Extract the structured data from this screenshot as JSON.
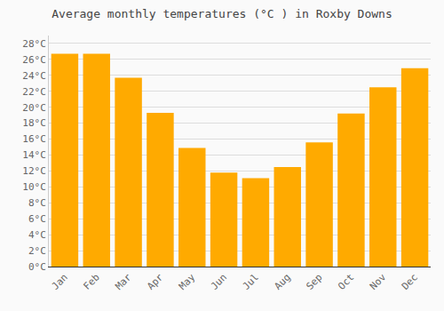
{
  "chart_data": {
    "type": "bar",
    "title": "Average monthly temperatures (°C ) in Roxby Downs",
    "categories": [
      "Jan",
      "Feb",
      "Mar",
      "Apr",
      "May",
      "Jun",
      "Jul",
      "Aug",
      "Sep",
      "Oct",
      "Nov",
      "Dec"
    ],
    "values": [
      26.7,
      26.7,
      23.7,
      19.3,
      14.9,
      11.8,
      11.1,
      12.5,
      15.6,
      19.2,
      22.5,
      24.9
    ],
    "color": "#FFAA00",
    "ylim": [
      0,
      29
    ],
    "yticks": [
      {
        "value": 0,
        "label": "0°C"
      },
      {
        "value": 2,
        "label": "2°C"
      },
      {
        "value": 4,
        "label": "4°C"
      },
      {
        "value": 6,
        "label": "6°C"
      },
      {
        "value": 8,
        "label": "8°C"
      },
      {
        "value": 10,
        "label": "10°C"
      },
      {
        "value": 12,
        "label": "12°C"
      },
      {
        "value": 14,
        "label": "14°C"
      },
      {
        "value": 16,
        "label": "16°C"
      },
      {
        "value": 18,
        "label": "18°C"
      },
      {
        "value": 20,
        "label": "20°C"
      },
      {
        "value": 22,
        "label": "22°C"
      },
      {
        "value": 24,
        "label": "24°C"
      },
      {
        "value": 26,
        "label": "26°C"
      },
      {
        "value": 28,
        "label": "28°C"
      }
    ],
    "grid": true
  }
}
